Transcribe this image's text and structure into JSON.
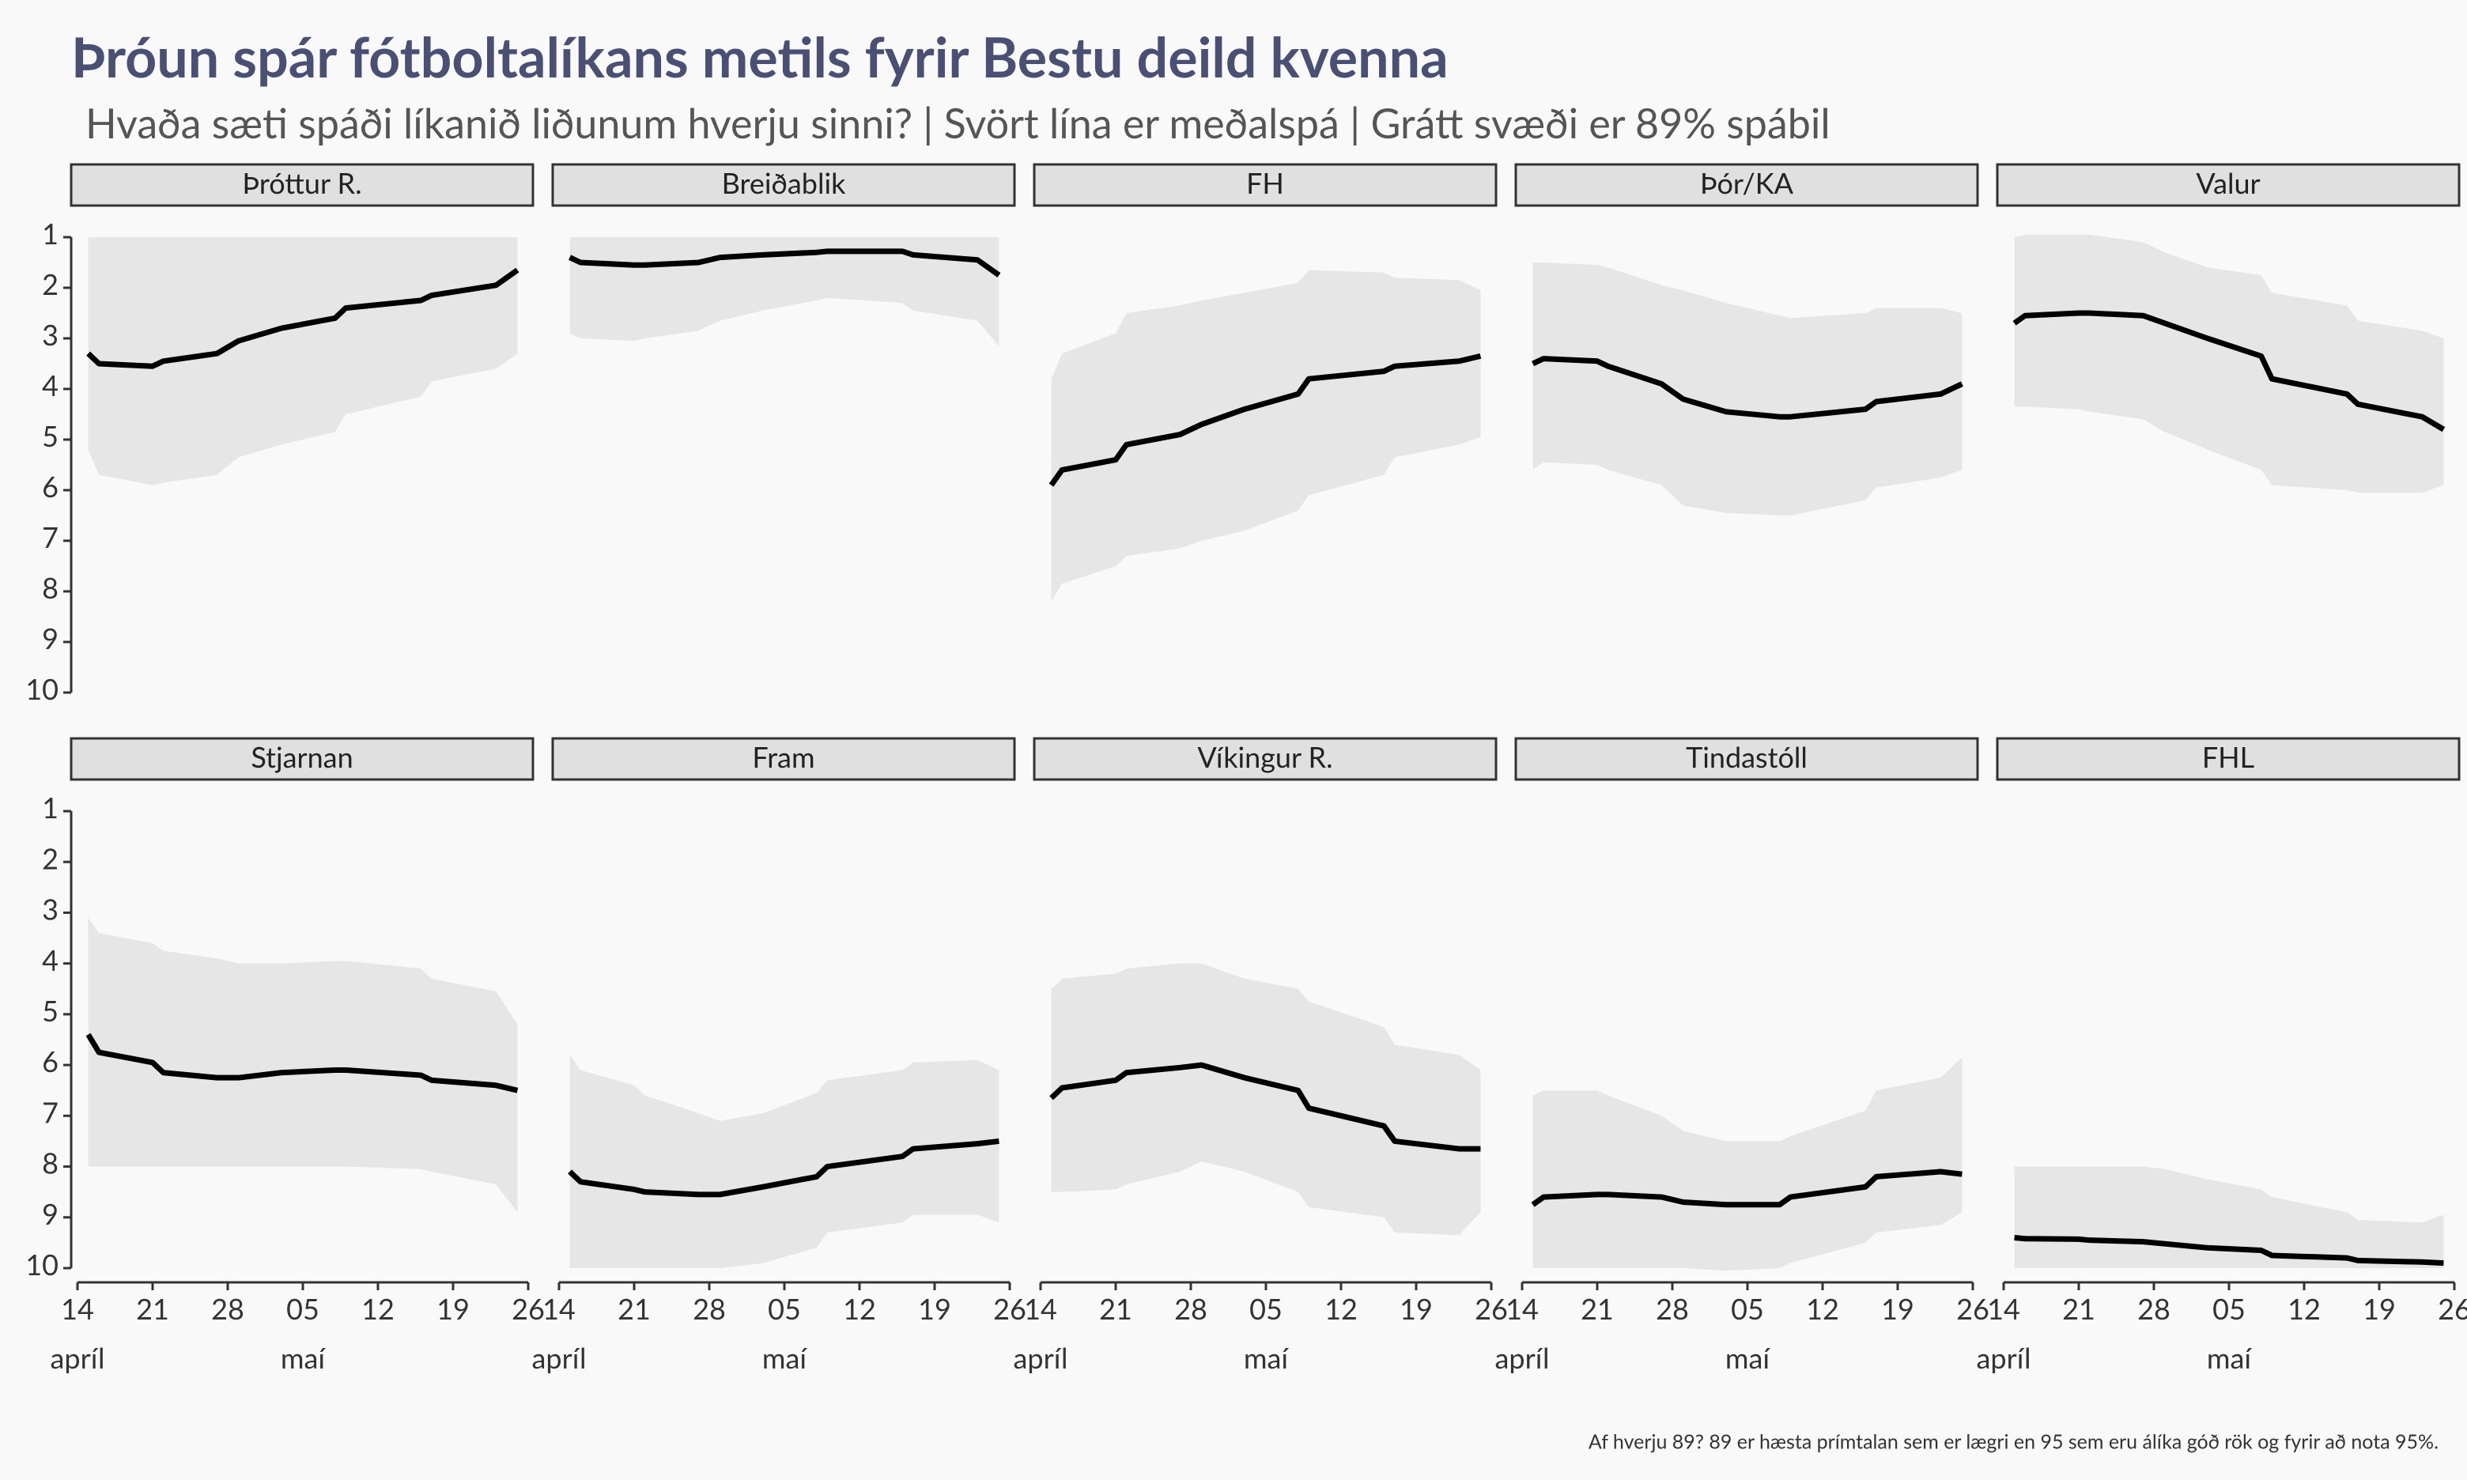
{
  "chart_data": {
    "type": "line",
    "title": "Þróun spár fótboltalíkans metils fyrir Bestu deild kvenna",
    "subtitle": "Hvaða sæti spáði líkanið liðunum hverju sinni? | Svört lína er meðalspá | Grátt svæði er 89% spábil",
    "caption": "Af hverju 89? 89 er hæsta prímtalan sem er lægri en 95 sem eru álíka góð rök og fyrir að nota 95%.",
    "xlim": [
      "04-14",
      "05-26"
    ],
    "xticks": [
      {
        "value": "04-14",
        "label": "14"
      },
      {
        "value": "04-21",
        "label": "21"
      },
      {
        "value": "04-28",
        "label": "28"
      },
      {
        "value": "05-05",
        "label": "05"
      },
      {
        "value": "05-12",
        "label": "12"
      },
      {
        "value": "05-19",
        "label": "19"
      },
      {
        "value": "05-26",
        "label": "26"
      }
    ],
    "month_labels": [
      {
        "value": "04-14",
        "label": "apríl"
      },
      {
        "value": "05-05",
        "label": "maí"
      }
    ],
    "ylim": [
      10,
      1
    ],
    "yticks": [
      1,
      2,
      3,
      4,
      5,
      6,
      7,
      8,
      9,
      10
    ],
    "line_color": "#000000",
    "band_color": "#e6e6e6",
    "x": [
      "04-15",
      "04-16",
      "04-21",
      "04-22",
      "04-27",
      "04-29",
      "05-03",
      "05-08",
      "05-09",
      "05-16",
      "05-17",
      "05-23",
      "05-25"
    ],
    "panels": [
      {
        "name": "Þróttur R.",
        "values": [
          3.3,
          3.5,
          3.55,
          3.45,
          3.3,
          3.05,
          2.8,
          2.6,
          2.4,
          2.25,
          2.15,
          1.95,
          1.65
        ],
        "lower": [
          1,
          1,
          1,
          1,
          1,
          1,
          1,
          1,
          1,
          1,
          1,
          1,
          1
        ],
        "upper": [
          5.2,
          5.7,
          5.9,
          5.85,
          5.7,
          5.35,
          5.1,
          4.85,
          4.5,
          4.15,
          3.85,
          3.6,
          3.3
        ]
      },
      {
        "name": "Breiðablik",
        "values": [
          1.4,
          1.5,
          1.55,
          1.55,
          1.5,
          1.4,
          1.35,
          1.3,
          1.28,
          1.28,
          1.35,
          1.45,
          1.75
        ],
        "lower": [
          1,
          1,
          1,
          1,
          1,
          1,
          1,
          1,
          1,
          1,
          1,
          1,
          1
        ],
        "upper": [
          2.9,
          3.0,
          3.05,
          3.0,
          2.85,
          2.65,
          2.45,
          2.25,
          2.2,
          2.3,
          2.45,
          2.65,
          3.15
        ]
      },
      {
        "name": "FH",
        "values": [
          5.9,
          5.6,
          5.4,
          5.1,
          4.9,
          4.7,
          4.4,
          4.1,
          3.8,
          3.65,
          3.55,
          3.45,
          3.35
        ],
        "lower": [
          3.8,
          3.3,
          2.9,
          2.5,
          2.35,
          2.25,
          2.1,
          1.9,
          1.65,
          1.7,
          1.8,
          1.85,
          2.05
        ],
        "upper": [
          8.2,
          7.85,
          7.5,
          7.3,
          7.15,
          7.0,
          6.8,
          6.4,
          6.1,
          5.7,
          5.35,
          5.1,
          4.95
        ]
      },
      {
        "name": "Þór/KA",
        "values": [
          3.5,
          3.4,
          3.45,
          3.55,
          3.9,
          4.2,
          4.45,
          4.55,
          4.55,
          4.4,
          4.25,
          4.1,
          3.9
        ],
        "lower": [
          1.5,
          1.5,
          1.55,
          1.6,
          1.95,
          2.05,
          2.3,
          2.55,
          2.6,
          2.5,
          2.4,
          2.4,
          2.5
        ],
        "upper": [
          5.6,
          5.45,
          5.5,
          5.6,
          5.9,
          6.3,
          6.45,
          6.5,
          6.5,
          6.2,
          5.95,
          5.75,
          5.6
        ]
      },
      {
        "name": "Valur",
        "values": [
          2.7,
          2.55,
          2.5,
          2.5,
          2.55,
          2.7,
          3.0,
          3.35,
          3.8,
          4.1,
          4.3,
          4.55,
          4.8
        ],
        "lower": [
          1.0,
          0.95,
          0.95,
          0.95,
          1.1,
          1.3,
          1.6,
          1.75,
          2.1,
          2.35,
          2.65,
          2.85,
          3.0
        ],
        "upper": [
          4.35,
          4.35,
          4.4,
          4.45,
          4.6,
          4.85,
          5.2,
          5.6,
          5.9,
          6.0,
          6.05,
          6.05,
          5.9
        ]
      },
      {
        "name": "Stjarnan",
        "values": [
          5.4,
          5.75,
          5.95,
          6.15,
          6.25,
          6.25,
          6.15,
          6.1,
          6.1,
          6.2,
          6.3,
          6.4,
          6.5
        ],
        "lower": [
          3.1,
          3.4,
          3.6,
          3.75,
          3.9,
          4.0,
          4.0,
          3.95,
          3.95,
          4.1,
          4.3,
          4.55,
          5.2
        ],
        "upper": [
          8,
          8,
          8,
          8,
          8,
          8,
          8,
          8,
          8,
          8.05,
          8.1,
          8.35,
          8.9
        ]
      },
      {
        "name": "Fram",
        "values": [
          8.1,
          8.3,
          8.45,
          8.5,
          8.55,
          8.55,
          8.4,
          8.2,
          8.0,
          7.8,
          7.65,
          7.55,
          7.5
        ],
        "lower": [
          5.8,
          6.1,
          6.4,
          6.6,
          6.95,
          7.1,
          6.95,
          6.55,
          6.3,
          6.1,
          5.95,
          5.9,
          6.1
        ],
        "upper": [
          10,
          10,
          10,
          10,
          10,
          10,
          9.9,
          9.6,
          9.3,
          9.1,
          8.95,
          8.95,
          9.1
        ]
      },
      {
        "name": "Víkingur R.",
        "values": [
          6.65,
          6.45,
          6.3,
          6.15,
          6.05,
          6.0,
          6.25,
          6.5,
          6.85,
          7.2,
          7.5,
          7.65,
          7.65
        ],
        "lower": [
          4.5,
          4.3,
          4.2,
          4.1,
          4.0,
          4.0,
          4.3,
          4.5,
          4.75,
          5.25,
          5.6,
          5.8,
          6.1
        ],
        "upper": [
          8.5,
          8.5,
          8.45,
          8.35,
          8.1,
          7.9,
          8.1,
          8.5,
          8.8,
          9.0,
          9.3,
          9.35,
          8.9
        ]
      },
      {
        "name": "Tindastóll",
        "values": [
          8.75,
          8.6,
          8.55,
          8.55,
          8.6,
          8.7,
          8.75,
          8.75,
          8.6,
          8.4,
          8.2,
          8.1,
          8.15
        ],
        "lower": [
          6.6,
          6.5,
          6.5,
          6.6,
          7.0,
          7.3,
          7.5,
          7.5,
          7.4,
          6.9,
          6.5,
          6.25,
          5.85
        ],
        "upper": [
          10,
          10,
          10,
          10,
          10,
          10,
          10.05,
          10.0,
          9.9,
          9.5,
          9.3,
          9.15,
          8.9
        ]
      },
      {
        "name": "FHL",
        "values": [
          9.4,
          9.42,
          9.43,
          9.45,
          9.48,
          9.52,
          9.6,
          9.65,
          9.75,
          9.8,
          9.85,
          9.88,
          9.9
        ],
        "lower": [
          8.0,
          8.0,
          8.0,
          8.0,
          8.0,
          8.05,
          8.25,
          8.45,
          8.6,
          8.9,
          9.05,
          9.1,
          8.95
        ],
        "upper": [
          10,
          10,
          10,
          10,
          10,
          10,
          10,
          10,
          10,
          10,
          10,
          10,
          10
        ]
      }
    ]
  }
}
